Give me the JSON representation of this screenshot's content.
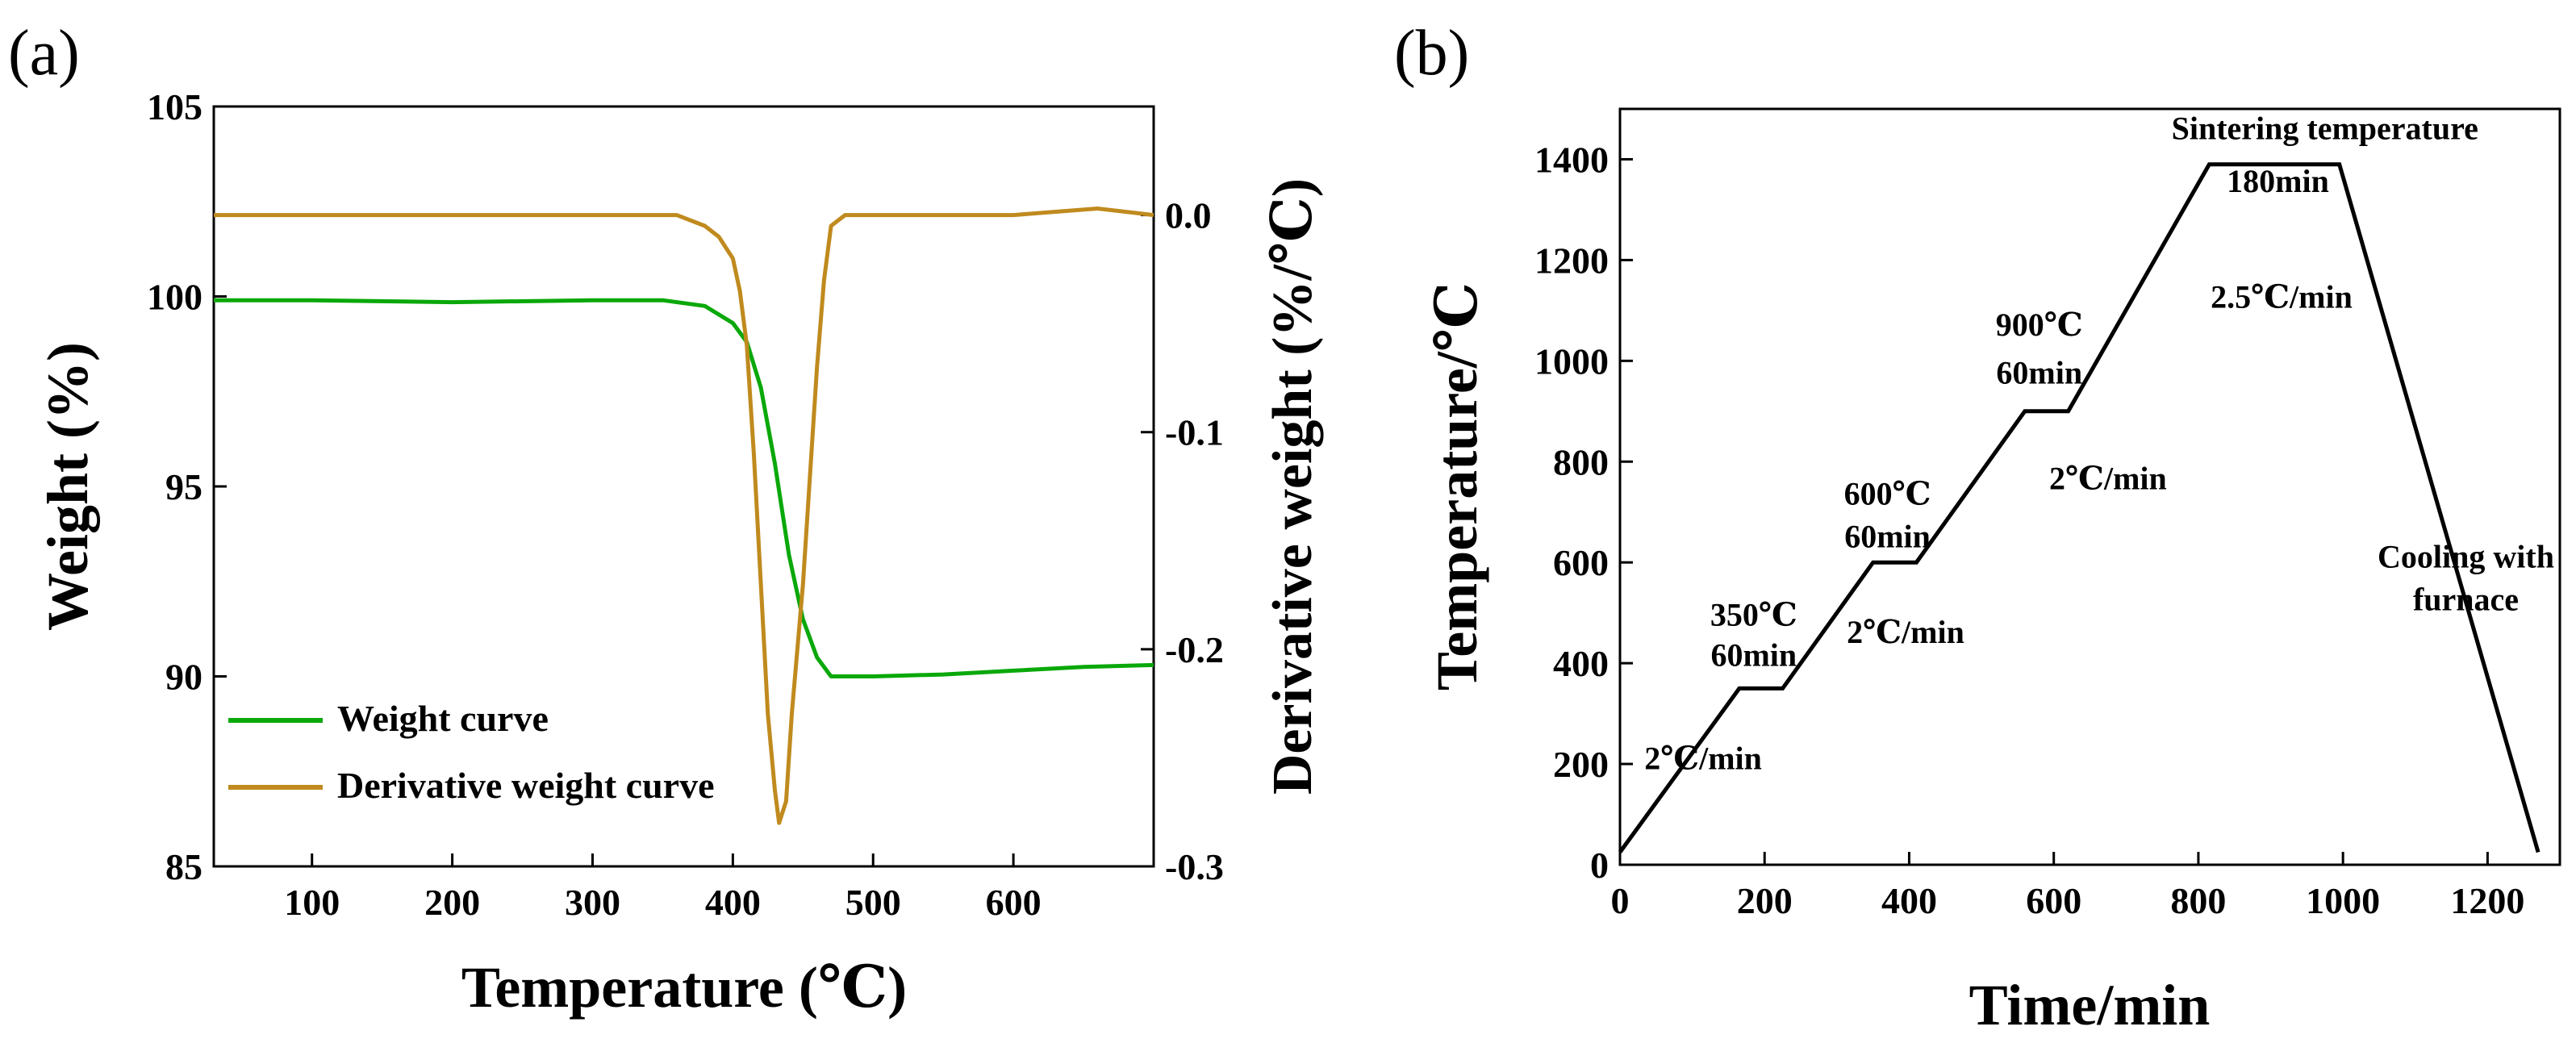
{
  "figure": {
    "panel_a_label": "(a)",
    "panel_b_label": "(b)"
  },
  "chart_data": [
    {
      "type": "line",
      "panel": "(a)",
      "xlabel": "Temperature (℃)",
      "ylabel": "Weight (%)",
      "y2label": "Derivative weight (%/℃)",
      "xlim": [
        30,
        700
      ],
      "ylim": [
        85,
        105
      ],
      "y2lim": [
        -0.3,
        0.05
      ],
      "xticks": [
        100,
        200,
        300,
        400,
        500,
        600
      ],
      "xtick_labels": [
        "100",
        "200",
        "300",
        "400",
        "500",
        "600"
      ],
      "yticks": [
        85,
        90,
        95,
        100,
        105
      ],
      "ytick_labels": [
        "85",
        "90",
        "95",
        "100",
        "105"
      ],
      "y2ticks": [
        -0.3,
        -0.2,
        -0.1,
        0.0
      ],
      "y2tick_labels": [
        "-0.3",
        "-0.2",
        "-0.1",
        "0.0"
      ],
      "grid": false,
      "legend_position": "bottom-left",
      "series": [
        {
          "name": "Weight curve",
          "axis": "left",
          "color": "#0aa80a",
          "x": [
            30,
            100,
            200,
            300,
            350,
            380,
            400,
            410,
            420,
            430,
            440,
            450,
            460,
            470,
            480,
            500,
            550,
            600,
            650,
            700
          ],
          "y": [
            99.9,
            99.9,
            99.85,
            99.9,
            99.9,
            99.75,
            99.3,
            98.8,
            97.6,
            95.6,
            93.2,
            91.5,
            90.5,
            90.0,
            90.0,
            90.0,
            90.05,
            90.15,
            90.25,
            90.3
          ]
        },
        {
          "name": "Derivative weight curve",
          "axis": "right",
          "color": "#c08a1e",
          "x": [
            30,
            100,
            200,
            300,
            360,
            380,
            390,
            400,
            405,
            410,
            415,
            420,
            425,
            430,
            433,
            438,
            442,
            450,
            455,
            460,
            465,
            470,
            480,
            500,
            600,
            660,
            700
          ],
          "y": [
            0.0,
            0.0,
            0.0,
            0.0,
            0.0,
            -0.005,
            -0.01,
            -0.02,
            -0.035,
            -0.06,
            -0.11,
            -0.17,
            -0.23,
            -0.265,
            -0.28,
            -0.27,
            -0.23,
            -0.17,
            -0.12,
            -0.07,
            -0.03,
            -0.005,
            0.0,
            0.0,
            0.0,
            0.003,
            0.0
          ]
        }
      ]
    },
    {
      "type": "line",
      "panel": "(b)",
      "xlabel": "Time/min",
      "ylabel": "Temperature/℃",
      "xlim": [
        0,
        1300
      ],
      "ylim": [
        0,
        1500
      ],
      "xticks": [
        0,
        200,
        400,
        600,
        800,
        1000,
        1200
      ],
      "xtick_labels": [
        "0",
        "200",
        "400",
        "600",
        "800",
        "1000",
        "1200"
      ],
      "yticks": [
        0,
        200,
        400,
        600,
        800,
        1000,
        1200,
        1400
      ],
      "ytick_labels": [
        "0",
        "200",
        "400",
        "600",
        "800",
        "1000",
        "1200",
        "1400"
      ],
      "grid": false,
      "series": [
        {
          "color": "#000000",
          "x": [
            0,
            165,
            225,
            350,
            410,
            560,
            620,
            815,
            995,
            1270
          ],
          "y": [
            25,
            350,
            350,
            600,
            600,
            900,
            900,
            1390,
            1390,
            25
          ]
        }
      ],
      "annotations": [
        {
          "text": "2℃/min",
          "x": 115,
          "y": 190
        },
        {
          "text": "350℃",
          "x": 185,
          "y": 475
        },
        {
          "text": "60min",
          "x": 185,
          "y": 395
        },
        {
          "text": "2℃/min",
          "x": 395,
          "y": 440
        },
        {
          "text": "600℃",
          "x": 370,
          "y": 715
        },
        {
          "text": "60min",
          "x": 370,
          "y": 630
        },
        {
          "text": "2℃/min",
          "x": 675,
          "y": 745
        },
        {
          "text": "900℃",
          "x": 580,
          "y": 1050
        },
        {
          "text": "60min",
          "x": 580,
          "y": 955
        },
        {
          "text": "2.5℃/min",
          "x": 915,
          "y": 1105
        },
        {
          "text": "Sintering temperature",
          "x": 975,
          "y": 1440
        },
        {
          "text": "180min",
          "x": 910,
          "y": 1335
        },
        {
          "text": "Cooling with",
          "x": 1170,
          "y": 590
        },
        {
          "text": "furnace",
          "x": 1170,
          "y": 505
        }
      ]
    }
  ]
}
